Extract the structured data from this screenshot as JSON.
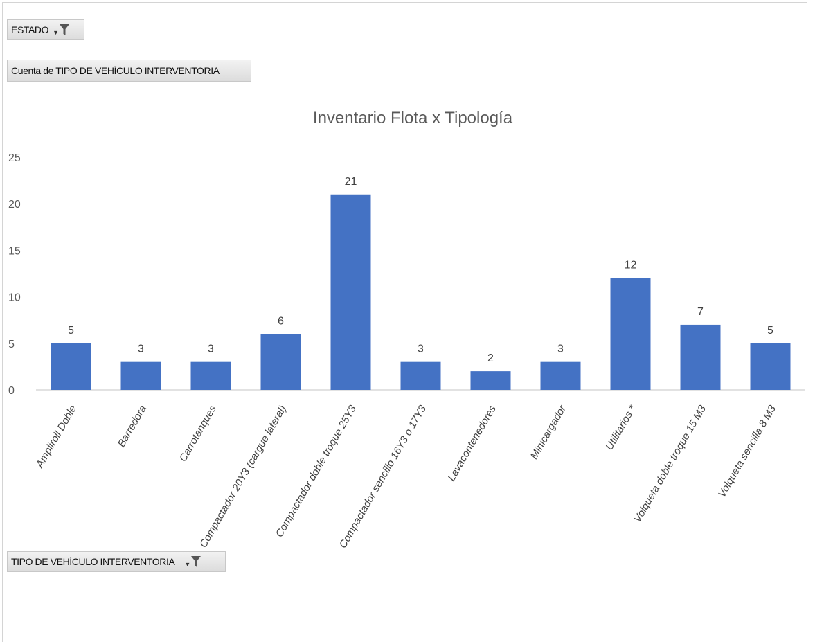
{
  "filters": {
    "estado_label": "ESTADO",
    "cuenta_label": "Cuenta de TIPO DE VEHÍCULO INTERVENTORIA",
    "tipo_label": "TIPO DE VEHÍCULO INTERVENTORIA"
  },
  "colors": {
    "bar": "#4472C4",
    "axis": "#d9d9d9",
    "text": "#595959"
  },
  "chart_data": {
    "type": "bar",
    "title": "Inventario Flota x Tipología",
    "xlabel": "",
    "ylabel": "",
    "ylim": [
      0,
      25
    ],
    "yticks": [
      0,
      5,
      10,
      15,
      20,
      25
    ],
    "grid": false,
    "legend": "none",
    "categories": [
      "Ampliroll Doble",
      "Barredora",
      "Carrotanques",
      "Compactador 20Y3 (cargue lateral)",
      "Compactador doble troque 25Y3",
      "Compactador sencillo 16Y3 o 17Y3",
      "Lavacontenedores",
      "Minicargador",
      "Utilitarios *",
      "Volqueta doble troque 15 M3",
      "Volqueta sencilla 8 M3"
    ],
    "values": [
      5,
      3,
      3,
      6,
      21,
      3,
      2,
      3,
      12,
      7,
      5
    ]
  }
}
